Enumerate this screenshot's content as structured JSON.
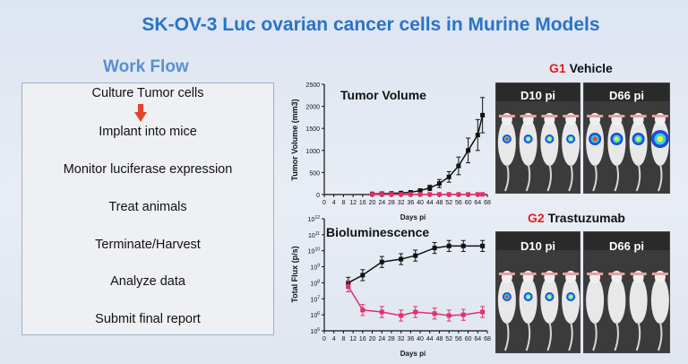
{
  "title": "SK-OV-3 Luc ovarian cancer cells in Murine Models",
  "workflow": {
    "heading": "Work Flow",
    "steps": [
      "Culture Tumor cells",
      "Implant into mice",
      "Monitor luciferase expression",
      "Treat animals",
      "Terminate/Harvest",
      "Analyze data",
      "Submit final report"
    ]
  },
  "groups": {
    "g1": {
      "id": "G1",
      "name": "Vehicle",
      "panels": [
        "D10 pi",
        "D66 pi"
      ]
    },
    "g2": {
      "id": "G2",
      "name": "Trastuzumab",
      "panels": [
        "D10 pi",
        "D66 pi"
      ]
    }
  },
  "colors": {
    "title": "#2a73c9",
    "workflow_heading": "#5a8fcf",
    "arrow": "#e0452a",
    "vehicle": "#111111",
    "treated": "#e0306a"
  },
  "chart_data": [
    {
      "type": "line",
      "title": "Tumor Volume",
      "xlabel": "Days pi",
      "ylabel": "Tumor Volume (mm3)",
      "x_ticks": [
        0,
        4,
        8,
        12,
        16,
        20,
        24,
        28,
        32,
        36,
        40,
        44,
        48,
        52,
        56,
        60,
        64,
        68
      ],
      "y_ticks": [
        0,
        500,
        1000,
        1500,
        2000,
        2500
      ],
      "xlim": [
        0,
        68
      ],
      "ylim": [
        0,
        2500
      ],
      "series": [
        {
          "color": "#111111",
          "x": [
            20,
            24,
            28,
            32,
            36,
            40,
            44,
            48,
            52,
            56,
            60,
            64,
            66
          ],
          "y": [
            15,
            20,
            25,
            35,
            50,
            90,
            150,
            250,
            400,
            650,
            1000,
            1350,
            1800
          ],
          "err": [
            5,
            8,
            10,
            12,
            20,
            35,
            60,
            90,
            120,
            200,
            280,
            350,
            400
          ]
        },
        {
          "color": "#e0306a",
          "x": [
            20,
            24,
            28,
            32,
            36,
            40,
            44,
            48,
            52,
            56,
            60,
            64,
            66
          ],
          "y": [
            5,
            5,
            5,
            5,
            5,
            5,
            5,
            5,
            5,
            5,
            5,
            5,
            5
          ],
          "err": [
            2,
            2,
            2,
            2,
            2,
            2,
            2,
            2,
            2,
            2,
            2,
            2,
            2
          ]
        }
      ]
    },
    {
      "type": "line",
      "title": "Bioluminescence",
      "xlabel": "Days pi",
      "ylabel": "Total Flux (p/s)",
      "x_ticks": [
        0,
        4,
        8,
        12,
        16,
        20,
        24,
        28,
        32,
        36,
        40,
        44,
        48,
        52,
        56,
        60,
        64,
        68
      ],
      "y_ticks_exp": [
        5,
        6,
        7,
        8,
        9,
        10,
        11,
        12
      ],
      "xlim": [
        0,
        68
      ],
      "ylim": [
        100000,
        1000000000000
      ],
      "log_scale": true,
      "series": [
        {
          "color": "#111111",
          "x": [
            10,
            16,
            24,
            32,
            38,
            46,
            52,
            58,
            66
          ],
          "y": [
            100000000,
            300000000,
            2000000000,
            3000000000,
            5000000000,
            15000000000,
            20000000000,
            20000000000,
            20000000000
          ]
        },
        {
          "color": "#e0306a",
          "x": [
            10,
            16,
            24,
            32,
            38,
            46,
            52,
            58,
            66
          ],
          "y": [
            60000000,
            2000000,
            1500000,
            900000,
            1500000,
            1200000,
            900000,
            1000000,
            1500000
          ]
        }
      ]
    }
  ]
}
